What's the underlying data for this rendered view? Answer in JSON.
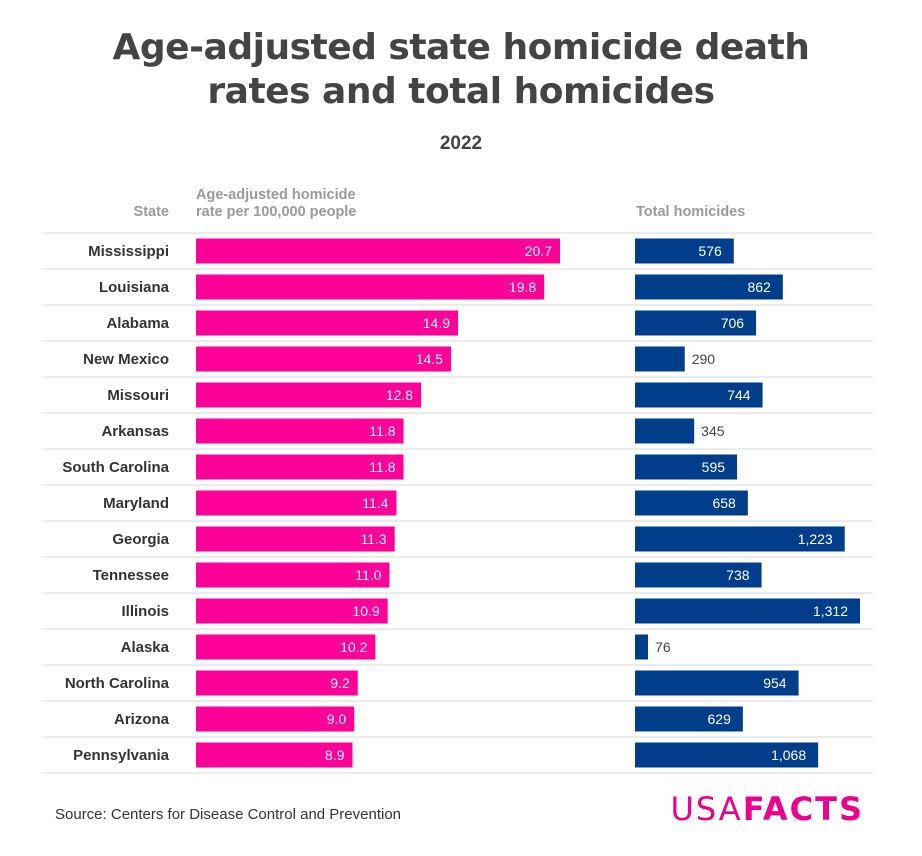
{
  "chart_data": {
    "type": "bar",
    "title": [
      "Age-adjusted state homicide death",
      "rates and total homicides"
    ],
    "subtitle": "2022",
    "state_header": "State",
    "series": [
      {
        "name": "Age-adjusted homicide rate per 100,000 people",
        "header_lines": [
          "Age-adjusted homicide",
          "rate per 100,000 people"
        ],
        "color": "#ff0099",
        "values": [
          20.7,
          19.8,
          14.9,
          14.5,
          12.8,
          11.8,
          11.8,
          11.4,
          11.3,
          11.0,
          10.9,
          10.2,
          9.2,
          9.0,
          8.9
        ],
        "labels": [
          "20.7",
          "19.8",
          "14.9",
          "14.5",
          "12.8",
          "11.8",
          "11.8",
          "11.4",
          "11.3",
          "11.0",
          "10.9",
          "10.2",
          "9.2",
          "9.0",
          "8.9"
        ],
        "xlim": [
          0,
          20.7
        ]
      },
      {
        "name": "Total homicides",
        "header_lines": [
          "Total homicides"
        ],
        "color": "#003d8a",
        "values": [
          576,
          862,
          706,
          290,
          744,
          345,
          595,
          658,
          1223,
          738,
          1312,
          76,
          954,
          629,
          1068
        ],
        "labels": [
          "576",
          "862",
          "706",
          "290",
          "744",
          "345",
          "595",
          "658",
          "1,223",
          "738",
          "1,312",
          "76",
          "954",
          "629",
          "1,068"
        ],
        "xlim": [
          0,
          1312
        ]
      }
    ],
    "categories": [
      "Mississippi",
      "Louisiana",
      "Alabama",
      "New Mexico",
      "Missouri",
      "Arkansas",
      "South Carolina",
      "Maryland",
      "Georgia",
      "Tennessee",
      "Illinois",
      "Alaska",
      "North Carolina",
      "Arizona",
      "Pennsylvania"
    ]
  },
  "footer": {
    "source": "Source: Centers for Disease Control and Prevention",
    "logo_usa": "USA",
    "logo_facts": "FACTS"
  }
}
